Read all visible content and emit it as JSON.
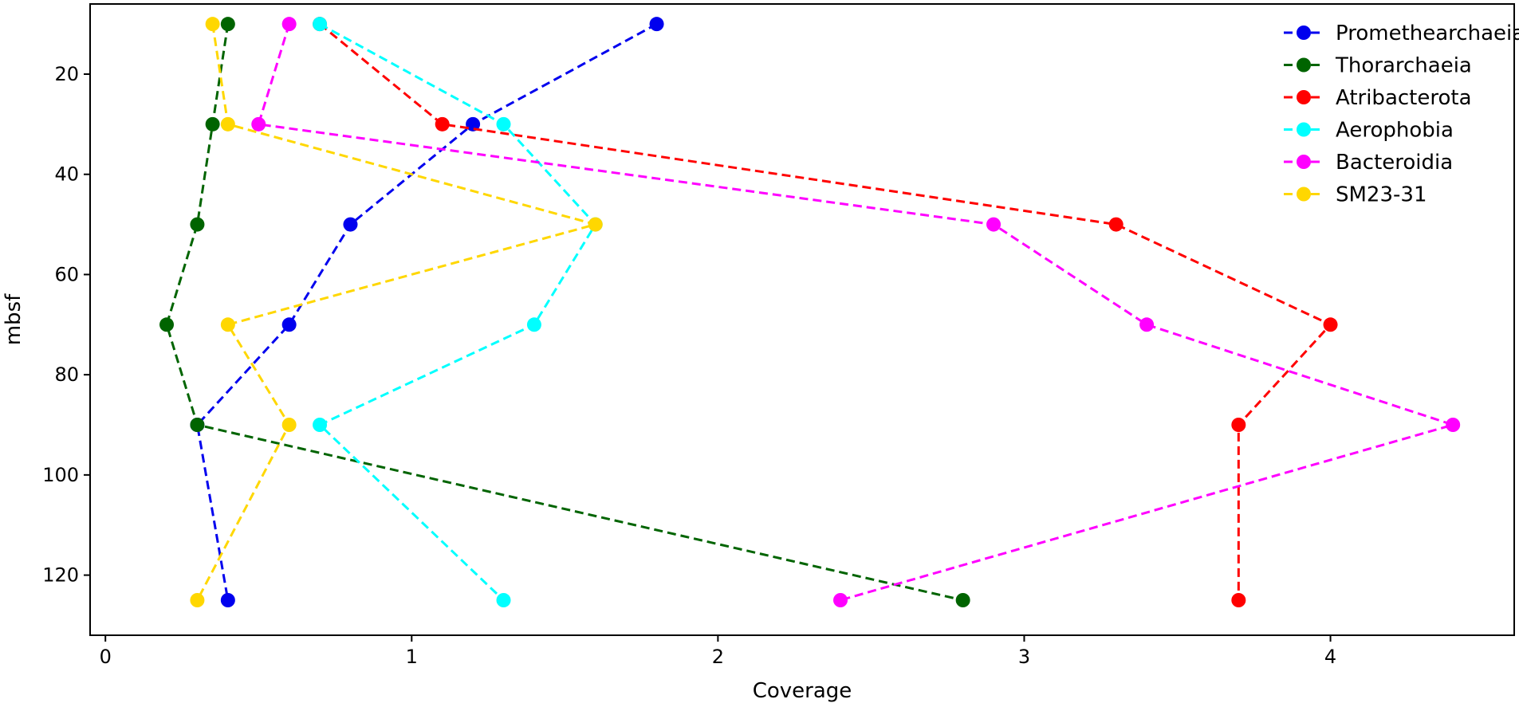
{
  "chart_data": {
    "type": "line",
    "xlabel": "Coverage",
    "ylabel": "mbsf",
    "xlim": [
      -0.05,
      4.6
    ],
    "ylim": [
      6,
      132
    ],
    "y_inverted": true,
    "x_ticks": [
      0,
      1,
      2,
      3,
      4
    ],
    "y_ticks": [
      20,
      40,
      60,
      80,
      100,
      120
    ],
    "line_style": "dashed",
    "marker": "circle",
    "grid": false,
    "legend_position": "top-right",
    "series": [
      {
        "name": "Promethearchaeia",
        "color": "#0000ee",
        "points": [
          {
            "x": 1.8,
            "y": 10
          },
          {
            "x": 1.2,
            "y": 30
          },
          {
            "x": 0.8,
            "y": 50
          },
          {
            "x": 0.6,
            "y": 70
          },
          {
            "x": 0.3,
            "y": 90
          },
          {
            "x": 0.4,
            "y": 125
          }
        ]
      },
      {
        "name": "Thorarchaeia",
        "color": "#006400",
        "points": [
          {
            "x": 0.4,
            "y": 10
          },
          {
            "x": 0.35,
            "y": 30
          },
          {
            "x": 0.3,
            "y": 50
          },
          {
            "x": 0.2,
            "y": 70
          },
          {
            "x": 0.3,
            "y": 90
          },
          {
            "x": 2.8,
            "y": 125
          }
        ]
      },
      {
        "name": "Atribacterota",
        "color": "#ff0000",
        "points": [
          {
            "x": 0.7,
            "y": 10
          },
          {
            "x": 1.1,
            "y": 30
          },
          {
            "x": 3.3,
            "y": 50
          },
          {
            "x": 4.0,
            "y": 70
          },
          {
            "x": 3.7,
            "y": 90
          },
          {
            "x": 3.7,
            "y": 125
          }
        ]
      },
      {
        "name": "Aerophobia",
        "color": "#00ffff",
        "points": [
          {
            "x": 0.7,
            "y": 10
          },
          {
            "x": 1.3,
            "y": 30
          },
          {
            "x": 1.6,
            "y": 50
          },
          {
            "x": 1.4,
            "y": 70
          },
          {
            "x": 0.7,
            "y": 90
          },
          {
            "x": 1.3,
            "y": 125
          }
        ]
      },
      {
        "name": "Bacteroidia",
        "color": "#ff00ff",
        "points": [
          {
            "x": 0.6,
            "y": 10
          },
          {
            "x": 0.5,
            "y": 30
          },
          {
            "x": 2.9,
            "y": 50
          },
          {
            "x": 3.4,
            "y": 70
          },
          {
            "x": 4.4,
            "y": 90
          },
          {
            "x": 2.4,
            "y": 125
          }
        ]
      },
      {
        "name": "SM23-31",
        "color": "#ffd700",
        "points": [
          {
            "x": 0.35,
            "y": 10
          },
          {
            "x": 0.4,
            "y": 30
          },
          {
            "x": 1.6,
            "y": 50
          },
          {
            "x": 0.4,
            "y": 70
          },
          {
            "x": 0.6,
            "y": 90
          },
          {
            "x": 0.3,
            "y": 125
          }
        ]
      }
    ]
  }
}
